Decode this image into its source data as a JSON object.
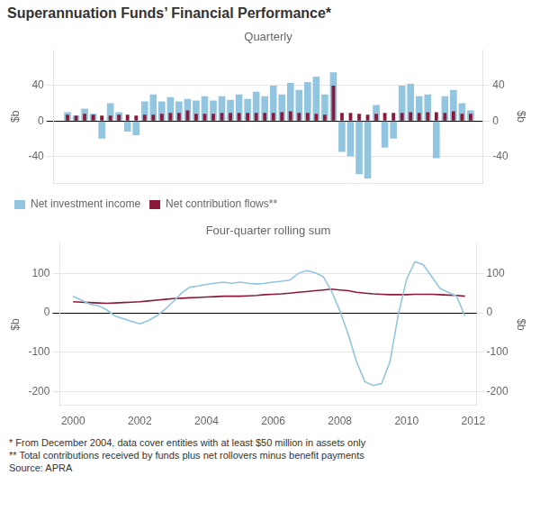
{
  "chart_data": [
    {
      "type": "bar",
      "title": "Superannuation Funds’ Financial Performance*",
      "subtitle": "Quarterly",
      "ylabel": "$b",
      "y2label": "$b",
      "x": [
        2000.0,
        2000.25,
        2000.5,
        2000.75,
        2001.0,
        2001.25,
        2001.5,
        2001.75,
        2002.0,
        2002.25,
        2002.5,
        2002.75,
        2003.0,
        2003.25,
        2003.5,
        2003.75,
        2004.0,
        2004.25,
        2004.5,
        2004.75,
        2005.0,
        2005.25,
        2005.5,
        2005.75,
        2006.0,
        2006.25,
        2006.5,
        2006.75,
        2007.0,
        2007.25,
        2007.5,
        2007.75,
        2008.0,
        2008.25,
        2008.5,
        2008.75,
        2009.0,
        2009.25,
        2009.5,
        2009.75,
        2010.0,
        2010.25,
        2010.5,
        2010.75,
        2011.0,
        2011.25,
        2011.5,
        2011.75
      ],
      "series": [
        {
          "name": "Net investment income",
          "color": "#92C5E0",
          "values": [
            10,
            6,
            14,
            8,
            -20,
            20,
            10,
            -12,
            -16,
            22,
            30,
            22,
            27,
            22,
            25,
            23,
            28,
            23,
            28,
            24,
            30,
            25,
            33,
            28,
            40,
            30,
            43,
            35,
            44,
            50,
            30,
            55,
            -35,
            -40,
            -60,
            -65,
            18,
            -30,
            -20,
            40,
            42,
            28,
            30,
            -42,
            28,
            35,
            20,
            12
          ]
        },
        {
          "name": "Net contribution flows**",
          "color": "#8B1A3A",
          "values": [
            7,
            6,
            8,
            7,
            6,
            6,
            7,
            7,
            6,
            7,
            7,
            8,
            9,
            9,
            12,
            8,
            8,
            8,
            9,
            9,
            9,
            9,
            9,
            9,
            9,
            10,
            11,
            9,
            9,
            8,
            7,
            40,
            9,
            9,
            8,
            7,
            8,
            9,
            9,
            9,
            10,
            9,
            10,
            10,
            9,
            11,
            8,
            8
          ]
        }
      ],
      "xlim": [
        1999.6,
        2012.1
      ],
      "ylim": [
        -70,
        80
      ],
      "yticks": [
        -40,
        0,
        40
      ],
      "y2lim": [
        -70,
        80
      ],
      "y2ticks": [
        -40,
        0,
        40
      ],
      "grid": "y",
      "legend": "lower left",
      "tick_labels": "y"
    },
    {
      "type": "line",
      "subtitle": "Four-quarter rolling sum",
      "ylabel": "$b",
      "y2label": "$b",
      "x": [
        2000.0,
        2000.25,
        2000.5,
        2000.75,
        2001.0,
        2001.25,
        2001.5,
        2001.75,
        2002.0,
        2002.25,
        2002.5,
        2002.75,
        2003.0,
        2003.25,
        2003.5,
        2003.75,
        2004.0,
        2004.25,
        2004.5,
        2004.75,
        2005.0,
        2005.25,
        2005.5,
        2005.75,
        2006.0,
        2006.25,
        2006.5,
        2006.75,
        2007.0,
        2007.25,
        2007.5,
        2007.75,
        2008.0,
        2008.25,
        2008.5,
        2008.75,
        2009.0,
        2009.25,
        2009.5,
        2009.75,
        2010.0,
        2010.25,
        2010.5,
        2010.75,
        2011.0,
        2011.25,
        2011.5,
        2011.75
      ],
      "series": [
        {
          "color": "#92C5E0",
          "values": [
            42,
            32,
            22,
            18,
            8,
            -8,
            -15,
            -22,
            -28,
            -20,
            -8,
            8,
            28,
            50,
            65,
            68,
            72,
            75,
            78,
            75,
            78,
            75,
            73,
            75,
            78,
            80,
            83,
            100,
            107,
            102,
            92,
            55,
            5,
            -55,
            -125,
            -175,
            -185,
            -180,
            -125,
            -5,
            85,
            130,
            122,
            92,
            62,
            52,
            42,
            -8
          ]
        },
        {
          "color": "#8B1A3A",
          "values": [
            28,
            27,
            26,
            25,
            24,
            25,
            26,
            27,
            28,
            30,
            32,
            34,
            36,
            37,
            38,
            39,
            40,
            41,
            42,
            42,
            42,
            43,
            44,
            46,
            47,
            48,
            50,
            52,
            54,
            56,
            58,
            60,
            58,
            56,
            52,
            50,
            48,
            47,
            46,
            46,
            46,
            47,
            47,
            47,
            46,
            45,
            44,
            42
          ]
        }
      ],
      "xlim": [
        1999.6,
        2012.1
      ],
      "xticks": [
        2000,
        2002,
        2004,
        2006,
        2008,
        2010,
        2012
      ],
      "ylim": [
        -235,
        175
      ],
      "yticks": [
        -200,
        -100,
        0,
        100
      ],
      "y2lim": [
        -235,
        175
      ],
      "y2ticks": [
        -200,
        -100,
        0,
        100
      ],
      "grid": "y",
      "annotations": [
        "* From December 2004, data cover entities with at least $50 million in assets only",
        "** Total contributions received by funds plus net rollovers minus benefit payments",
        "Source: APRA"
      ]
    }
  ]
}
